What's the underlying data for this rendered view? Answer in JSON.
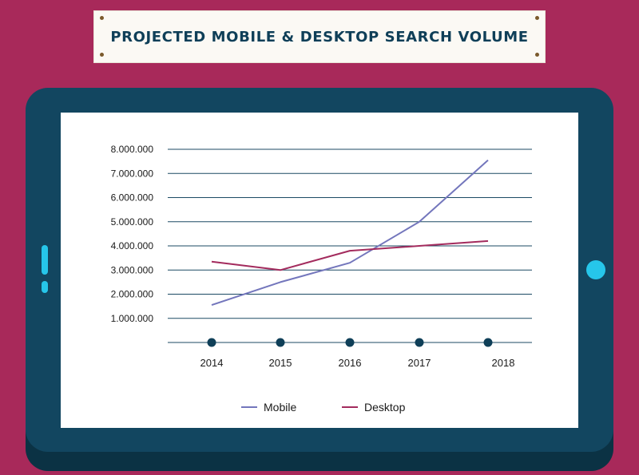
{
  "banner": {
    "title": "PROJECTED MOBILE & DESKTOP SEARCH VOLUME"
  },
  "chart_data": {
    "type": "line",
    "title": "PROJECTED MOBILE & DESKTOP SEARCH VOLUME",
    "categories": [
      "2014",
      "2015",
      "2016",
      "2017",
      "2018"
    ],
    "series": [
      {
        "name": "Mobile",
        "color": "#7376bc",
        "values": [
          1550000,
          2500000,
          3300000,
          5000000,
          7550000
        ]
      },
      {
        "name": "Desktop",
        "color": "#a32b5d",
        "values": [
          3350000,
          3000000,
          3800000,
          4000000,
          4200000
        ]
      }
    ],
    "ylim": [
      0,
      8000000
    ],
    "yticks": [
      1000000,
      2000000,
      3000000,
      4000000,
      5000000,
      6000000,
      7000000,
      8000000
    ],
    "ytick_labels": [
      "1.000.000",
      "2.000.000",
      "3.000.000",
      "4.000.000",
      "5.000.000",
      "6.000.000",
      "7.000.000",
      "8.000.000"
    ],
    "grid": true,
    "legend": "bottom",
    "xlabel": "",
    "ylabel": ""
  },
  "colors": {
    "background": "#a8295a",
    "tablet": "#124660",
    "accent": "#26c6ea",
    "marker": "#0f3f58",
    "grid": "#1b4a63"
  }
}
